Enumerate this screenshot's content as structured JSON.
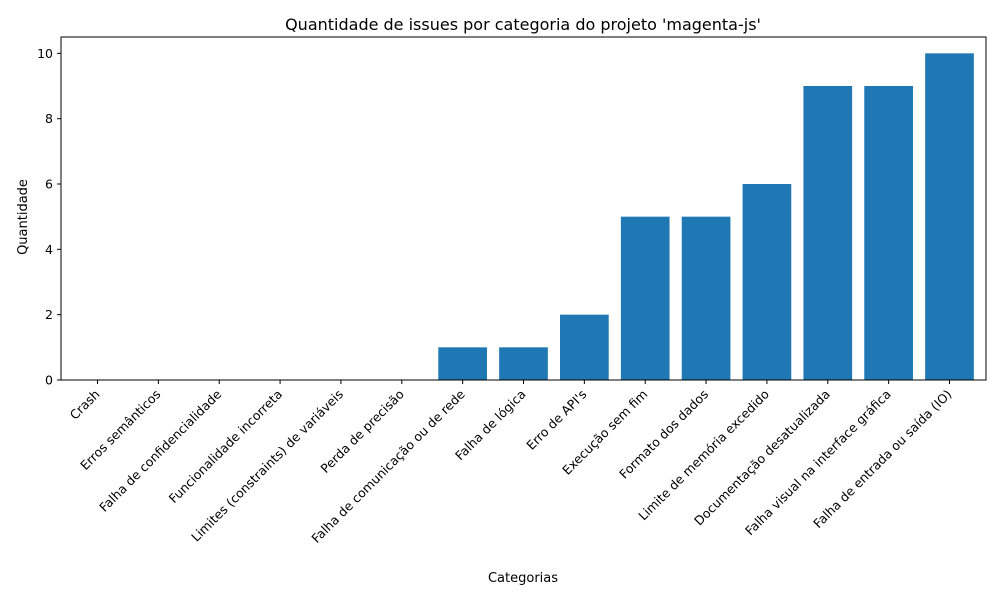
{
  "chart_data": {
    "type": "bar",
    "title": "Quantidade de issues por categoria do projeto 'magenta-js'",
    "xlabel": "Categorias",
    "ylabel": "Quantidade",
    "categories": [
      "Crash",
      "Erros semânticos",
      "Falha de confidencialidade",
      "Funcionalidade incorreta",
      "Limites (constraints) de variáveis",
      "Perda de precisão",
      "Falha de comunicação ou de rede",
      "Falha de lógica",
      "Erro de API's",
      "Execução sem fim",
      "Formato dos dados",
      "Limite de memória excedido",
      "Documentação desatualizada",
      "Falha visual na interface gráfica",
      "Falha de entrada ou saída (IO)"
    ],
    "values": [
      0,
      0,
      0,
      0,
      0,
      0,
      1,
      1,
      2,
      5,
      5,
      6,
      9,
      9,
      10
    ],
    "ylim": [
      0,
      10.5
    ],
    "yticks": [
      0,
      2,
      4,
      6,
      8,
      10
    ],
    "grid": false,
    "bar_color": "#1f77b4"
  }
}
